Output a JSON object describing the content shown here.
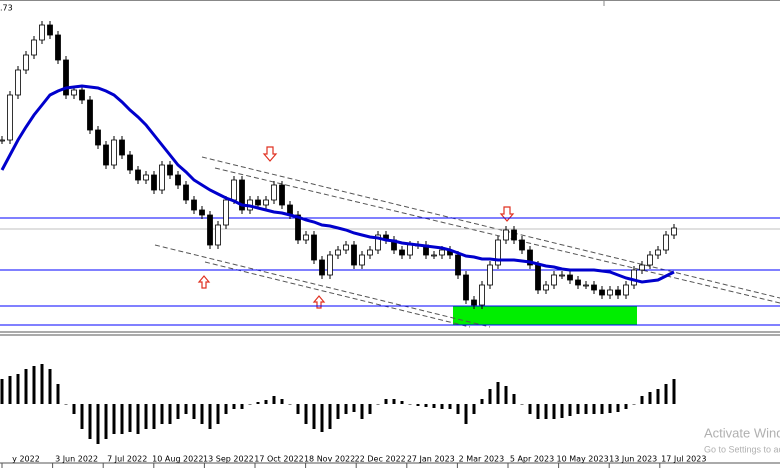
{
  "corner_text": ".73",
  "watermark": {
    "title": "Activate Windows",
    "subtitle": "Go to Settings to activate Windows."
  },
  "chart_data": [
    {
      "type": "candlestick",
      "ylim": [
        0,
        330
      ],
      "levels": [
        112,
        60,
        24,
        5
      ],
      "level_color": "#0000ff",
      "series": [
        {
          "color": "#000000",
          "values": [
            190,
            235,
            260,
            275,
            290,
            305,
            295,
            270,
            235,
            240,
            230,
            200,
            185,
            165,
            190,
            175,
            160,
            150,
            155,
            140,
            165,
            155,
            145,
            130,
            120,
            115,
            85,
            105,
            130,
            150,
            120,
            130,
            125,
            130,
            145,
            125,
            115,
            90,
            95,
            70,
            55,
            75,
            80,
            85,
            65,
            75,
            80,
            95,
            90,
            80,
            75,
            85,
            85,
            75,
            75,
            80,
            75,
            55,
            30,
            25,
            45,
            65,
            90,
            100,
            90,
            80,
            65,
            40,
            45,
            55,
            55,
            50,
            45,
            45,
            40,
            35,
            40,
            35,
            45,
            60,
            65,
            75,
            80,
            95,
            102
          ]
        },
        {
          "type": "line",
          "color": "#0000cc",
          "values": [
            160,
            175,
            190,
            203,
            215,
            225,
            235,
            239,
            242,
            243,
            244,
            243,
            242,
            239,
            235,
            228,
            220,
            213,
            205,
            195,
            185,
            175,
            165,
            158,
            150,
            145,
            140,
            136,
            132,
            129,
            125,
            124,
            122,
            120,
            118,
            117,
            115,
            113,
            110,
            108,
            105,
            104,
            102,
            100,
            97,
            95,
            93,
            92,
            90,
            89,
            87,
            86,
            85,
            84,
            83,
            82,
            80,
            77,
            74,
            73,
            71,
            71,
            70,
            70,
            70,
            69,
            68,
            66,
            64,
            63,
            61,
            60,
            60,
            60,
            60,
            59,
            58,
            55,
            52,
            50,
            48,
            49,
            50,
            54,
            58
          ]
        }
      ]
    },
    {
      "type": "histogram",
      "ylim": [
        -48,
        64
      ],
      "color": "#000000",
      "values": [
        25,
        28,
        30,
        35,
        38,
        40,
        35,
        20,
        0,
        -10,
        -25,
        -35,
        -40,
        -35,
        -30,
        -30,
        -28,
        -30,
        -25,
        -25,
        -20,
        -20,
        -15,
        -10,
        -15,
        -20,
        -25,
        -20,
        -10,
        -5,
        -5,
        0,
        2,
        4,
        8,
        5,
        0,
        -10,
        -20,
        -25,
        -28,
        -25,
        -15,
        -10,
        -8,
        -15,
        -10,
        0,
        5,
        5,
        3,
        0,
        -2,
        -3,
        -4,
        -5,
        -5,
        -10,
        -20,
        -10,
        5,
        15,
        22,
        18,
        10,
        0,
        -10,
        -15,
        -15,
        -15,
        -14,
        -12,
        -10,
        -10,
        -10,
        -10,
        -9,
        -8,
        -5,
        0,
        8,
        12,
        15,
        20,
        25
      ],
      "xticks": [
        "y 2022",
        "3 Jun 2022",
        "7 Jul 2022",
        "10 Aug 2022",
        "13 Sep 2022",
        "17 Oct 2022",
        "18 Nov 2022",
        "22 Dec 2022",
        "27 Jan 2023",
        "2 Mar 2023",
        "5 Apr 2023",
        "10 May 2023",
        "13 Jun 2023",
        "17 Jul 2023"
      ]
    }
  ]
}
